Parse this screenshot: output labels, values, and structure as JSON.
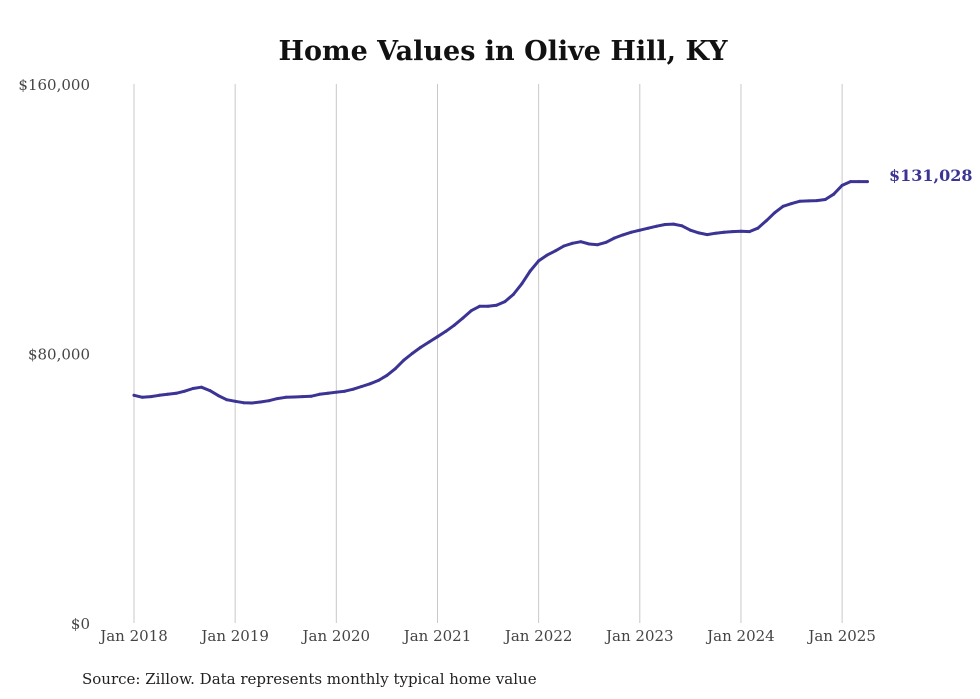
{
  "chart_data": {
    "type": "line",
    "title": "Home Values in Olive Hill, KY",
    "xlabel": "",
    "ylabel": "",
    "ylim": [
      0,
      160000
    ],
    "y_ticks": [
      0,
      80000,
      160000
    ],
    "y_tick_labels": [
      "$0",
      "$80,000",
      "$160,000"
    ],
    "x_ticks": [
      "2018-01",
      "2019-01",
      "2020-01",
      "2021-01",
      "2022-01",
      "2023-01",
      "2024-01",
      "2025-01"
    ],
    "x_tick_labels": [
      "Jan 2018",
      "Jan 2019",
      "Jan 2020",
      "Jan 2021",
      "Jan 2022",
      "Jan 2023",
      "Jan 2024",
      "Jan 2025"
    ],
    "grid": "vertical",
    "series": [
      {
        "color": "#3b3494",
        "x": [
          "2018-01",
          "2018-02",
          "2018-03",
          "2018-04",
          "2018-05",
          "2018-06",
          "2018-07",
          "2018-08",
          "2018-09",
          "2018-10",
          "2018-11",
          "2018-12",
          "2019-01",
          "2019-02",
          "2019-03",
          "2019-04",
          "2019-05",
          "2019-06",
          "2019-07",
          "2019-08",
          "2019-09",
          "2019-10",
          "2019-11",
          "2019-12",
          "2020-01",
          "2020-02",
          "2020-03",
          "2020-04",
          "2020-05",
          "2020-06",
          "2020-07",
          "2020-08",
          "2020-09",
          "2020-10",
          "2020-11",
          "2020-12",
          "2021-01",
          "2021-02",
          "2021-03",
          "2021-04",
          "2021-05",
          "2021-06",
          "2021-07",
          "2021-08",
          "2021-09",
          "2021-10",
          "2021-11",
          "2021-12",
          "2022-01",
          "2022-02",
          "2022-03",
          "2022-04",
          "2022-05",
          "2022-06",
          "2022-07",
          "2022-08",
          "2022-09",
          "2022-10",
          "2022-11",
          "2022-12",
          "2023-01",
          "2023-02",
          "2023-03",
          "2023-04",
          "2023-05",
          "2023-06",
          "2023-07",
          "2023-08",
          "2023-09",
          "2023-10",
          "2023-11",
          "2023-12",
          "2024-01",
          "2024-02",
          "2024-03",
          "2024-04",
          "2024-05",
          "2024-06",
          "2024-07",
          "2024-08",
          "2024-09",
          "2024-10",
          "2024-11",
          "2024-12",
          "2025-01",
          "2025-02",
          "2025-03",
          "2025-04"
        ],
        "values": [
          67600,
          67000,
          67200,
          67600,
          67900,
          68200,
          68800,
          69600,
          70000,
          69000,
          67500,
          66300,
          65800,
          65400,
          65300,
          65600,
          66000,
          66600,
          67000,
          67100,
          67200,
          67300,
          67900,
          68200,
          68500,
          68800,
          69400,
          70200,
          71000,
          72000,
          73500,
          75500,
          78000,
          80000,
          81800,
          83400,
          85000,
          86600,
          88400,
          90500,
          92700,
          94000,
          94000,
          94300,
          95400,
          97500,
          100700,
          104500,
          107500,
          109200,
          110500,
          111900,
          112700,
          113200,
          112500,
          112300,
          113000,
          114300,
          115200,
          116000,
          116600,
          117200,
          117800,
          118300,
          118400,
          117900,
          116600,
          115800,
          115300,
          115700,
          116000,
          116200,
          116300,
          116200,
          117200,
          119400,
          121800,
          123700,
          124500,
          125200,
          125300,
          125400,
          125700,
          127300,
          129900,
          131028,
          131028,
          131028
        ],
        "end_label": "$131,028"
      }
    ]
  },
  "source_note": "Source: Zillow. Data represents monthly typical home value"
}
